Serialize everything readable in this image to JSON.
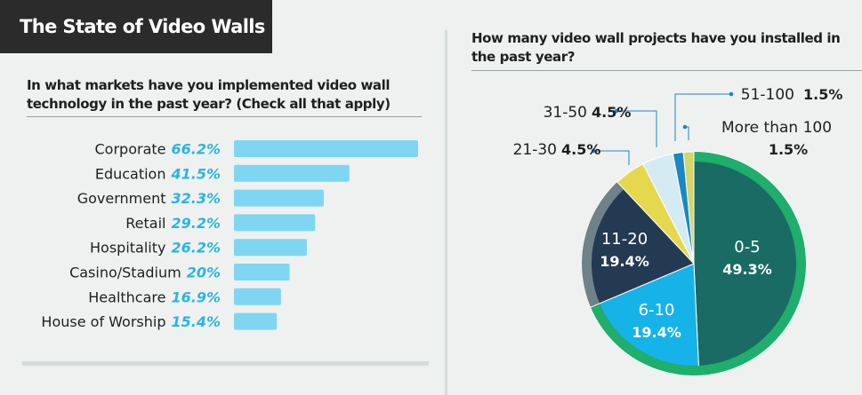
{
  "title": "The State of Video Walls",
  "colors": {
    "bar": "#7ed6f2",
    "bar_value_text": "#2cb4df",
    "title_bg": "#2b2b2b",
    "pie": {
      "0-5": "#1a6b63",
      "6-10": "#15b3e8",
      "11-20": "#243a52",
      "21-30": "#e6d84d",
      "31-50": "#d5ebf3",
      "51-100": "#1a88c2",
      "More than 100": "#d4d56a",
      "outer_ring_main": "#1fae6b",
      "outer_ring_alt": "#6f8289"
    }
  },
  "chart_data": [
    {
      "type": "bar",
      "orientation": "horizontal",
      "title": "In what markets have you implemented video wall technology in the past year? (Check all that apply)",
      "categories": [
        "Corporate",
        "Education",
        "Government",
        "Retail",
        "Hospitality",
        "Casino/Stadium",
        "Healthcare",
        "House of Worship"
      ],
      "values": [
        66.2,
        41.5,
        32.3,
        29.2,
        26.2,
        20,
        16.9,
        15.4
      ],
      "value_labels": [
        "66.2%",
        "41.5%",
        "32.3%",
        "29.2%",
        "26.2%",
        "20%",
        "16.9%",
        "15.4%"
      ],
      "unit": "%",
      "xlim": [
        0,
        66.2
      ],
      "grid": false,
      "legend": "none"
    },
    {
      "type": "pie",
      "title": "How many video wall projects have you installed in the past year?",
      "categories": [
        "0-5",
        "6-10",
        "11-20",
        "21-30",
        "31-50",
        "51-100",
        "More than 100"
      ],
      "values": [
        49.3,
        19.4,
        19.4,
        4.5,
        4.5,
        1.5,
        1.5
      ],
      "value_labels": [
        "49.3%",
        "19.4%",
        "19.4%",
        "4.5%",
        "4.5%",
        "1.5%",
        "1.5%"
      ],
      "unit": "%",
      "legend": "none"
    }
  ]
}
